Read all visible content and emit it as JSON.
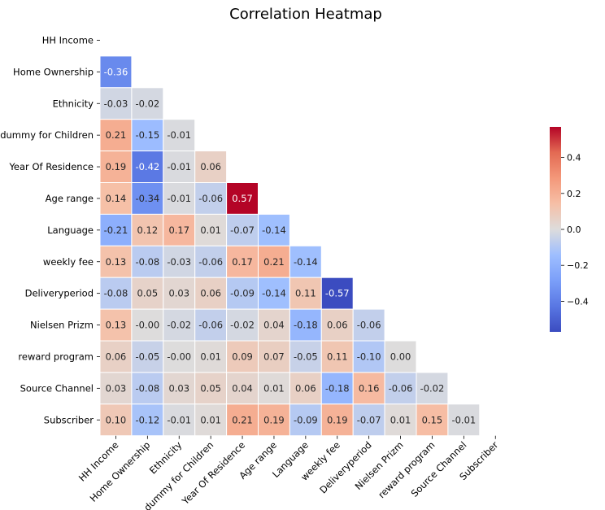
{
  "chart_data": {
    "type": "heatmap",
    "title": "Correlation Heatmap",
    "variables": [
      "HH Income",
      "Home Ownership",
      "Ethnicity",
      "dummy for Children",
      "Year Of Residence",
      "Age range",
      "Language",
      "weekly fee",
      "Deliveryperiod",
      "Nielsen Prizm",
      "reward program",
      "Source Channel",
      "Subscriber"
    ],
    "mask": "upper-triangle-and-diagonal",
    "rows": [
      [],
      [
        -0.36
      ],
      [
        -0.03,
        -0.02
      ],
      [
        0.21,
        -0.15,
        -0.01
      ],
      [
        0.19,
        -0.42,
        -0.01,
        0.06
      ],
      [
        0.14,
        -0.34,
        -0.01,
        -0.06,
        0.57
      ],
      [
        -0.21,
        0.12,
        0.17,
        0.01,
        -0.07,
        -0.14
      ],
      [
        0.13,
        -0.08,
        -0.03,
        -0.06,
        0.17,
        0.21,
        -0.14
      ],
      [
        -0.08,
        0.05,
        0.03,
        0.06,
        -0.09,
        -0.14,
        0.11,
        -0.57
      ],
      [
        0.13,
        -0.0,
        -0.02,
        -0.06,
        -0.02,
        0.04,
        -0.18,
        0.06,
        -0.06
      ],
      [
        0.06,
        -0.05,
        -0.0,
        0.01,
        0.09,
        0.07,
        -0.05,
        0.11,
        -0.1,
        0.0
      ],
      [
        0.03,
        -0.08,
        0.03,
        0.05,
        0.04,
        0.01,
        0.06,
        -0.18,
        0.16,
        -0.06,
        -0.02
      ],
      [
        0.1,
        -0.12,
        -0.01,
        0.01,
        0.21,
        0.19,
        -0.09,
        0.19,
        -0.07,
        0.01,
        0.15,
        -0.01
      ]
    ],
    "colormap": "coolwarm",
    "vmin": -0.57,
    "vmax": 0.57,
    "colorbar": {
      "ticks": [
        -0.4,
        -0.2,
        0.0,
        0.2,
        0.4
      ],
      "tick_labels": [
        "−0.4",
        "−0.2",
        "0.0",
        "0.2",
        "0.4"
      ],
      "placement": "right"
    },
    "cell_border_color": "#ffffff"
  }
}
